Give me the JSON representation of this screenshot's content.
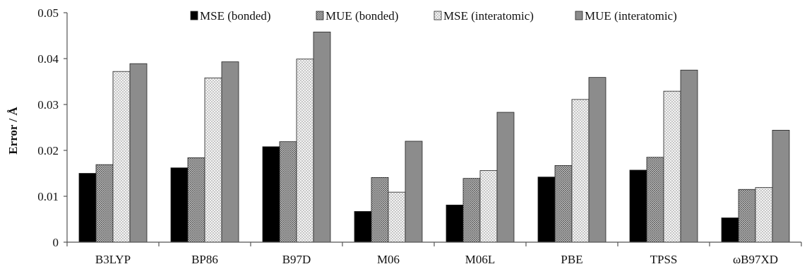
{
  "chart_data": {
    "type": "bar",
    "title": "",
    "xlabel": "",
    "ylabel": "Error / Å",
    "ylim": [
      0,
      0.05
    ],
    "yticks": [
      "0",
      "0.01",
      "0.02",
      "0.03",
      "0.04",
      "0.05"
    ],
    "grid": false,
    "legend_position": "top",
    "categories": [
      "B3LYP",
      "BP86",
      "B97D",
      "M06",
      "M06L",
      "PBE",
      "TPSS",
      "ωB97XD"
    ],
    "series": [
      {
        "name": "MSE (bonded)",
        "fill": "solid",
        "color": "#000000",
        "values": [
          0.015,
          0.0162,
          0.0208,
          0.0067,
          0.0081,
          0.0142,
          0.0157,
          0.0053
        ]
      },
      {
        "name": "MUE (bonded)",
        "fill": "dense-crosshatch",
        "color": "#bdbdbd",
        "values": [
          0.0169,
          0.0184,
          0.0219,
          0.0141,
          0.0139,
          0.0167,
          0.0185,
          0.0115
        ]
      },
      {
        "name": "MSE (interatomic)",
        "fill": "sparse-dots",
        "color": "#e6e6e6",
        "values": [
          0.0372,
          0.0358,
          0.0399,
          0.0109,
          0.0156,
          0.0311,
          0.0329,
          0.0119
        ]
      },
      {
        "name": "MUE (interatomic)",
        "fill": "solid",
        "color": "#8c8c8c",
        "values": [
          0.0389,
          0.0393,
          0.0458,
          0.022,
          0.0283,
          0.0359,
          0.0375,
          0.0244
        ]
      }
    ]
  }
}
